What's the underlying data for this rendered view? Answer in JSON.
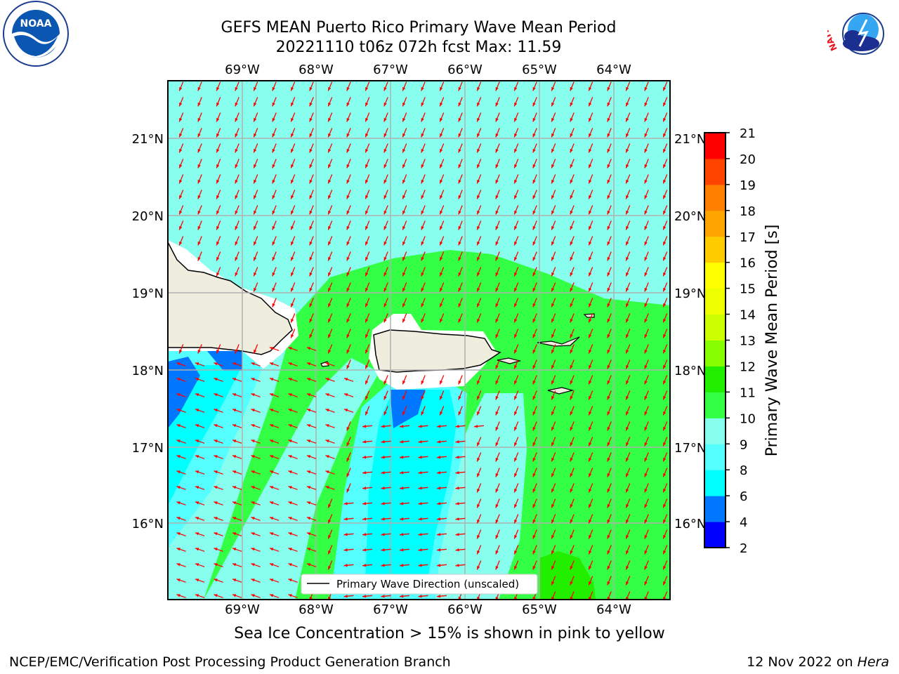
{
  "title": {
    "line1": "GEFS MEAN Puerto Rico Primary Wave Mean Period",
    "line2": "20221110 t06z 072h fcst   Max: 11.59"
  },
  "axes": {
    "lon_labels": [
      "69°W",
      "68°W",
      "67°W",
      "66°W",
      "65°W",
      "64°W"
    ],
    "lat_labels": [
      "21°N",
      "20°N",
      "19°N",
      "18°N",
      "17°N",
      "16°N"
    ]
  },
  "colorbar": {
    "label": "Primary Wave Mean Period [s]",
    "ticks": [
      "2",
      "4",
      "6",
      "8",
      "9",
      "10",
      "11",
      "12",
      "13",
      "14",
      "15",
      "16",
      "17",
      "18",
      "19",
      "20",
      "21"
    ],
    "colors": [
      "#0000ff",
      "#0077ff",
      "#00ffff",
      "#55ffff",
      "#88ffee",
      "#33ff44",
      "#22ee00",
      "#88ff00",
      "#ccff00",
      "#eeff00",
      "#ffff00",
      "#ffcc00",
      "#ffa500",
      "#ff7f00",
      "#ff4400",
      "#ff0000"
    ]
  },
  "legend": {
    "label": "Primary Wave Direction (unscaled)"
  },
  "note": "Sea Ice Concentration > 15% is shown in pink to yellow",
  "footer": {
    "left": "NCEP/EMC/Verification Post Processing Product Generation Branch",
    "date": "12 Nov 2022 on ",
    "host": "Hera"
  },
  "logos": {
    "noaa": "NOAA",
    "nws": "NATIONAL WEATHER SERVICE"
  },
  "colors": {
    "land": "#efedde",
    "arrow": "#ff0000",
    "grid": "#b0b0b0"
  }
}
